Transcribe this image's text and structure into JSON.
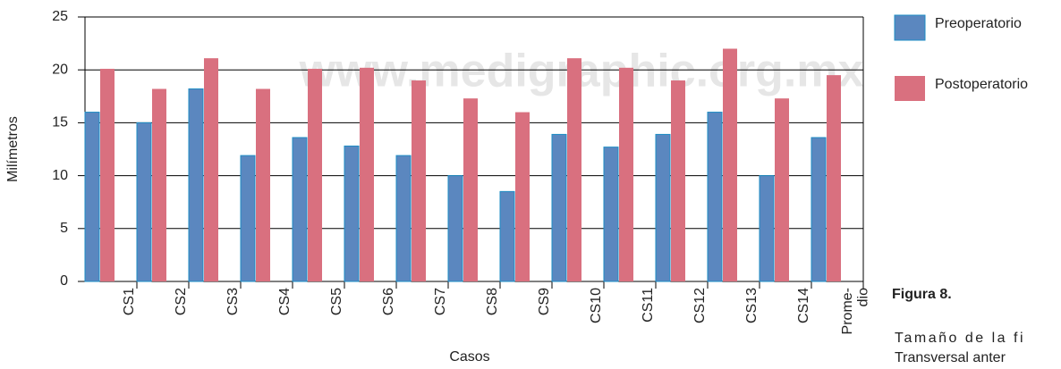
{
  "chart_data": {
    "type": "bar",
    "y_label": "Milímetros",
    "x_label": "Casos",
    "watermark": "www.medigraphic.org.mx",
    "caption_title": "Figura 8.",
    "caption_lines": [
      "Tamaño de la fi",
      "Transversal anter"
    ],
    "categories": [
      "CS1",
      "CS2",
      "CS3",
      "CS4",
      "CS5",
      "CS6",
      "CS7",
      "CS8",
      "CS9",
      "CS10",
      "CS11",
      "CS12",
      "CS13",
      "CS14",
      "Prome-\ndio"
    ],
    "series": [
      {
        "name": "Preoperatorio",
        "color": "#5b87bf",
        "values": [
          16,
          15,
          18.2,
          11.9,
          13.6,
          12.8,
          11.9,
          10,
          8.5,
          13.9,
          12.7,
          13.9,
          16,
          10,
          13.6
        ]
      },
      {
        "name": "Postoperatorio",
        "color": "#d9707f",
        "values": [
          20.1,
          18.2,
          21.1,
          18.2,
          20.1,
          20.2,
          19,
          17.3,
          16,
          21.1,
          20.2,
          19,
          22,
          17.3,
          19.5
        ]
      }
    ],
    "ylim": [
      0,
      25
    ],
    "yticks": [
      0,
      5,
      10,
      15,
      20,
      25
    ],
    "grid": true
  }
}
